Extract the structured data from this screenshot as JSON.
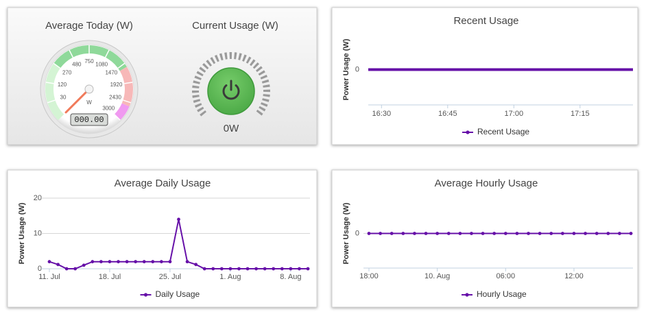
{
  "chart_data": [
    {
      "type": "gauge",
      "title": "Average Today (W)",
      "unit": "W",
      "scale": "sqrt",
      "ylim": [
        0,
        3000
      ],
      "yticks": [
        30,
        120,
        270,
        480,
        750,
        1080,
        1470,
        1920,
        2430,
        3000
      ],
      "values": [
        0
      ],
      "value_labels": [
        "000.00"
      ]
    },
    {
      "type": "power-indicator",
      "title": "Current Usage (W)",
      "values": [
        0
      ],
      "value_labels": [
        "0W"
      ]
    },
    {
      "type": "line",
      "title": "Recent Usage",
      "y_label": "Power Usage (W)",
      "x": [
        987,
        1002,
        1017,
        1032,
        1047
      ],
      "xlim": [
        987,
        1047
      ],
      "xticks": [
        {
          "value": 990,
          "label": "16:30"
        },
        {
          "value": 1005,
          "label": "16:45"
        },
        {
          "value": 1020,
          "label": "17:00"
        },
        {
          "value": 1035,
          "label": "17:15"
        }
      ],
      "ylim": [
        -1,
        1
      ],
      "yticks": [
        0
      ],
      "grid": true,
      "markers": false,
      "series": [
        {
          "name": "Recent Usage",
          "color": "#6610a8",
          "values": [
            0,
            0,
            0,
            0,
            0
          ]
        }
      ]
    },
    {
      "type": "line",
      "title": "Average Daily Usage",
      "y_label": "Power Usage (W)",
      "categories": [
        "11. Jul",
        null,
        null,
        null,
        null,
        null,
        null,
        "18. Jul",
        null,
        null,
        null,
        null,
        null,
        null,
        "25. Jul",
        null,
        null,
        null,
        null,
        null,
        null,
        "1. Aug",
        null,
        null,
        null,
        null,
        null,
        null,
        "8. Aug",
        null,
        null
      ],
      "ylim": [
        0,
        20
      ],
      "yticks": [
        0,
        10,
        20
      ],
      "grid": true,
      "markers": true,
      "series": [
        {
          "name": "Daily Usage",
          "color": "#6610a8",
          "values": [
            2,
            1.2,
            0,
            0,
            1,
            2,
            2,
            2,
            2,
            2,
            2,
            2,
            2,
            2,
            2,
            14,
            2,
            1.2,
            0,
            0,
            0,
            0,
            0,
            0,
            0,
            0,
            0,
            0,
            0,
            0,
            0
          ]
        }
      ]
    },
    {
      "type": "line",
      "title": "Average Hourly Usage",
      "y_label": "Power Usage (W)",
      "categories": [
        "18:00",
        null,
        null,
        null,
        null,
        null,
        "10. Aug",
        null,
        null,
        null,
        null,
        null,
        "06:00",
        null,
        null,
        null,
        null,
        null,
        "12:00",
        null,
        null,
        null,
        null,
        null
      ],
      "ylim": [
        -1,
        1
      ],
      "yticks": [
        0
      ],
      "grid": true,
      "markers": true,
      "series": [
        {
          "name": "Hourly Usage",
          "color": "#6610a8",
          "values": [
            0,
            0,
            0,
            0,
            0,
            0,
            0,
            0,
            0,
            0,
            0,
            0,
            0,
            0,
            0,
            0,
            0,
            0,
            0,
            0,
            0,
            0,
            0,
            0
          ]
        }
      ]
    }
  ]
}
